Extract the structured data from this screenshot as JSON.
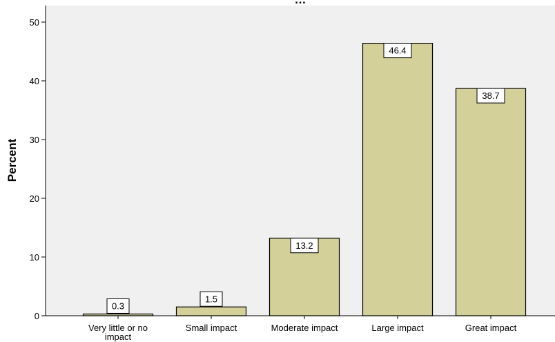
{
  "chart_data": {
    "type": "bar",
    "title": "...Impact...",
    "title_visible_fragment": "...",
    "xlabel": "",
    "ylabel": "Percent",
    "categories": [
      "Very little or no impact",
      "Small impact",
      "Moderate impact",
      "Large impact",
      "Great impact"
    ],
    "category_lines": [
      [
        "Very little or no",
        "impact"
      ],
      [
        "Small impact"
      ],
      [
        "Moderate impact"
      ],
      [
        "Large impact"
      ],
      [
        "Great impact"
      ]
    ],
    "values": [
      0.3,
      1.5,
      13.2,
      46.4,
      38.7
    ],
    "data_labels": [
      "0.3",
      "1.5",
      "13.2",
      "46.4",
      "38.7"
    ],
    "ylim": [
      0,
      52
    ],
    "yticks": [
      0,
      10,
      20,
      30,
      40,
      50
    ],
    "grid": false,
    "legend": "none",
    "colors": {
      "bar_fill": "#d4d09a",
      "bar_stroke": "#000000",
      "plot_background": "#f0f0f0",
      "label_box": "#ffffff"
    }
  }
}
